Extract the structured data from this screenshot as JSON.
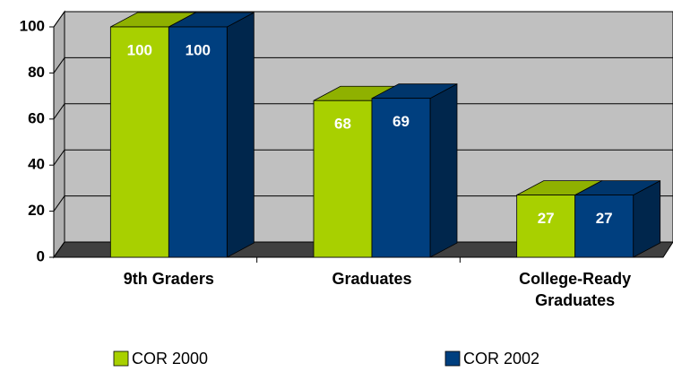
{
  "chart_data": {
    "type": "bar3d",
    "categories": [
      "9th Graders",
      "Graduates",
      "College-Ready Graduates"
    ],
    "series": [
      {
        "name": "COR 2000",
        "color": "#a8d000",
        "values": [
          100,
          68,
          27
        ]
      },
      {
        "name": "COR 2002",
        "color": "#003f7f",
        "values": [
          100,
          69,
          27
        ]
      }
    ],
    "ylim": [
      0,
      100
    ],
    "yticks": [
      0,
      20,
      40,
      60,
      80,
      100
    ],
    "grid": true,
    "legend": "bottom"
  }
}
